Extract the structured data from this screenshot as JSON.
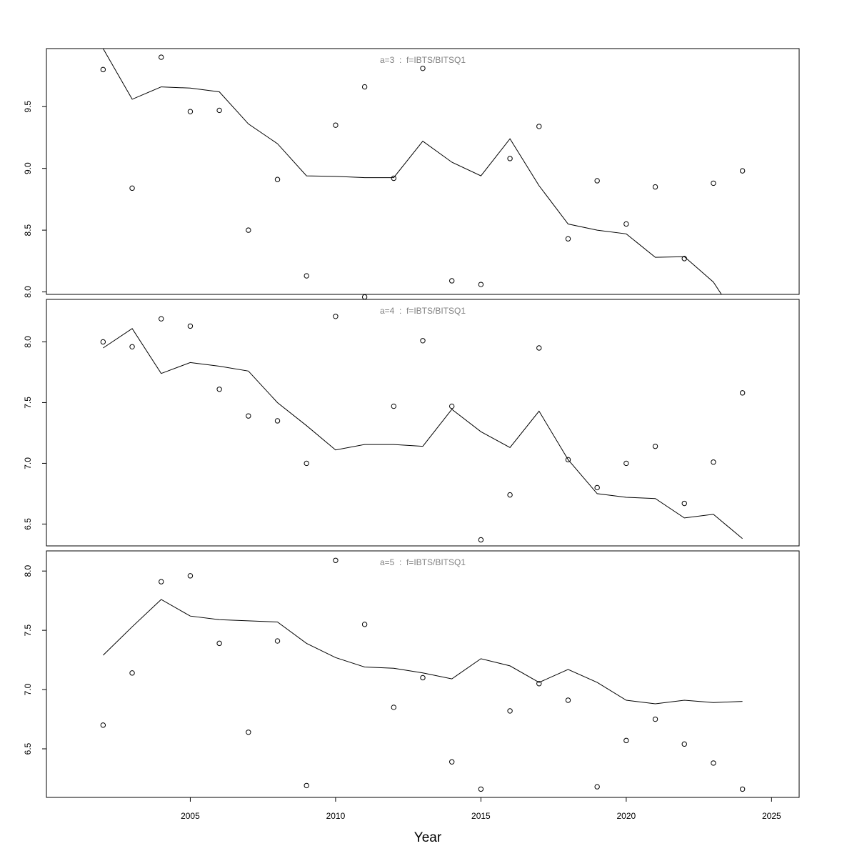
{
  "chart_data": [
    {
      "type": "line",
      "title": "a=3  :  f=IBTS/BITSQ1",
      "ylim": [
        7.98,
        9.97
      ],
      "yticks": [
        8.0,
        8.5,
        9.0,
        9.5
      ],
      "ytick_labels": [
        "8.0",
        "8.5",
        "9.0",
        "9.5"
      ],
      "xlim": [
        2000.05,
        2025.95
      ],
      "observed": {
        "x": [
          2002,
          2003,
          2004,
          2005,
          2006,
          2007,
          2008,
          2009,
          2010,
          2011,
          2012,
          2013,
          2014,
          2015,
          2016,
          2017,
          2018,
          2019,
          2020,
          2021,
          2022,
          2023,
          2024
        ],
        "y": [
          9.8,
          8.84,
          9.9,
          9.46,
          9.47,
          8.5,
          8.91,
          8.13,
          9.35,
          9.66,
          8.92,
          9.81,
          8.09,
          8.06,
          9.08,
          9.34,
          8.43,
          8.9,
          8.55,
          8.85,
          8.27,
          8.88,
          8.98
        ]
      },
      "fitted": {
        "x": [
          2002,
          2003,
          2004,
          2005,
          2006,
          2007,
          2008,
          2009,
          2010,
          2011,
          2012,
          2013,
          2014,
          2015,
          2016,
          2017,
          2018,
          2019,
          2020,
          2021,
          2022,
          2023,
          2024
        ],
        "y": [
          9.97,
          9.56,
          9.66,
          9.65,
          9.62,
          9.36,
          9.2,
          8.94,
          8.935,
          8.925,
          8.925,
          9.22,
          9.05,
          8.94,
          9.24,
          8.86,
          8.55,
          8.5,
          8.47,
          8.28,
          8.285,
          8.08,
          7.72
        ]
      }
    },
    {
      "type": "line",
      "title": "a=4  :  f=IBTS/BITSQ1",
      "ylim": [
        6.32,
        8.35
      ],
      "yticks": [
        6.5,
        7.0,
        7.5,
        8.0
      ],
      "ytick_labels": [
        "6.5",
        "7.0",
        "7.5",
        "8.0"
      ],
      "xlim": [
        2000.05,
        2025.95
      ],
      "observed": {
        "x": [
          2002,
          2003,
          2004,
          2005,
          2006,
          2007,
          2008,
          2009,
          2010,
          2011,
          2012,
          2013,
          2014,
          2015,
          2016,
          2017,
          2018,
          2019,
          2020,
          2021,
          2022,
          2023,
          2024
        ],
        "y": [
          8.0,
          7.96,
          8.19,
          8.13,
          7.61,
          7.39,
          7.35,
          7.0,
          8.21,
          8.37,
          7.47,
          8.01,
          7.47,
          6.37,
          6.74,
          7.95,
          7.03,
          6.8,
          7.0,
          7.14,
          6.67,
          7.01,
          7.58
        ]
      },
      "fitted": {
        "x": [
          2002,
          2003,
          2004,
          2005,
          2006,
          2007,
          2008,
          2009,
          2010,
          2011,
          2012,
          2013,
          2014,
          2015,
          2016,
          2017,
          2018,
          2019,
          2020,
          2021,
          2022,
          2023,
          2024
        ],
        "y": [
          7.95,
          8.11,
          7.74,
          7.83,
          7.8,
          7.76,
          7.5,
          7.31,
          7.11,
          7.155,
          7.155,
          7.14,
          7.445,
          7.26,
          7.13,
          7.43,
          7.03,
          6.75,
          6.72,
          6.71,
          6.55,
          6.58,
          6.38
        ]
      }
    },
    {
      "type": "line",
      "title": "a=5  :  f=IBTS/BITSQ1",
      "ylim": [
        6.09,
        8.17
      ],
      "yticks": [
        6.5,
        7.0,
        7.5,
        8.0
      ],
      "ytick_labels": [
        "6.5",
        "7.0",
        "7.5",
        "8.0"
      ],
      "xlim": [
        2000.05,
        2025.95
      ],
      "xticks": [
        2005,
        2010,
        2015,
        2020,
        2025
      ],
      "xtick_labels": [
        "2005",
        "2010",
        "2015",
        "2020",
        "2025"
      ],
      "xlabel": "Year",
      "observed": {
        "x": [
          2002,
          2003,
          2004,
          2005,
          2006,
          2007,
          2008,
          2009,
          2010,
          2011,
          2012,
          2013,
          2014,
          2015,
          2016,
          2017,
          2018,
          2019,
          2020,
          2021,
          2022,
          2023,
          2024
        ],
        "y": [
          6.7,
          7.14,
          7.91,
          7.96,
          7.39,
          6.64,
          7.41,
          6.19,
          8.09,
          7.55,
          6.85,
          7.1,
          6.39,
          6.16,
          6.82,
          7.05,
          6.91,
          6.18,
          6.57,
          6.75,
          6.54,
          6.38,
          6.16
        ]
      },
      "fitted": {
        "x": [
          2002,
          2003,
          2004,
          2005,
          2006,
          2007,
          2008,
          2009,
          2010,
          2011,
          2012,
          2013,
          2014,
          2015,
          2016,
          2017,
          2018,
          2019,
          2020,
          2021,
          2022,
          2023,
          2024
        ],
        "y": [
          7.29,
          7.53,
          7.76,
          7.62,
          7.59,
          7.58,
          7.57,
          7.39,
          7.27,
          7.19,
          7.18,
          7.14,
          7.09,
          7.26,
          7.2,
          7.06,
          7.17,
          7.06,
          6.91,
          6.88,
          6.91,
          6.89,
          6.9
        ]
      }
    }
  ]
}
